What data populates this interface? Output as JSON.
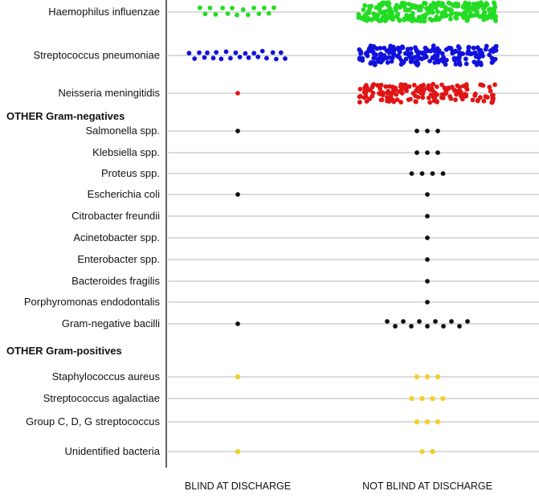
{
  "chart_data": {
    "type": "scatter",
    "columns": [
      "BLIND AT DISCHARGE",
      "NOT BLIND AT DISCHARGE"
    ],
    "grid": true,
    "colors": {
      "green": "#22dd22",
      "blue": "#1111dd",
      "red": "#e01515",
      "black": "#111111",
      "yellow": "#f2cc1a",
      "gridline": "#b8b8b8",
      "axis": "#222222"
    },
    "rows": [
      {
        "kind": "data",
        "label": "Haemophilus influenzae",
        "color": "green",
        "blind": 15,
        "not_blind": 250
      },
      {
        "kind": "data",
        "label": "Streptococcus pneumoniae",
        "color": "blue",
        "blind": 22,
        "not_blind": 200
      },
      {
        "kind": "data",
        "label": "Neisseria meningitidis",
        "color": "red",
        "blind": 1,
        "not_blind": 170
      },
      {
        "kind": "group",
        "label": "OTHER Gram-negatives"
      },
      {
        "kind": "data",
        "label": "Salmonella spp.",
        "color": "black",
        "blind": 1,
        "not_blind": 3
      },
      {
        "kind": "data",
        "label": "Klebsiella spp.",
        "color": "black",
        "blind": 0,
        "not_blind": 3
      },
      {
        "kind": "data",
        "label": "Proteus spp.",
        "color": "black",
        "blind": 0,
        "not_blind": 4
      },
      {
        "kind": "data",
        "label": "Escherichia coli",
        "color": "black",
        "blind": 1,
        "not_blind": 1
      },
      {
        "kind": "data",
        "label": "Citrobacter freundii",
        "color": "black",
        "blind": 0,
        "not_blind": 1
      },
      {
        "kind": "data",
        "label": "Acinetobacter spp.",
        "color": "black",
        "blind": 0,
        "not_blind": 1
      },
      {
        "kind": "data",
        "label": "Enterobacter spp.",
        "color": "black",
        "blind": 0,
        "not_blind": 1
      },
      {
        "kind": "data",
        "label": "Bacteroides fragilis",
        "color": "black",
        "blind": 0,
        "not_blind": 1
      },
      {
        "kind": "data",
        "label": "Porphyromonas endodontalis",
        "color": "black",
        "blind": 0,
        "not_blind": 1
      },
      {
        "kind": "data",
        "label": "Gram-negative bacilli",
        "color": "black",
        "blind": 1,
        "not_blind": 11
      },
      {
        "kind": "group",
        "label": "OTHER Gram-positives"
      },
      {
        "kind": "data",
        "label": "Staphylococcus aureus",
        "color": "yellow",
        "blind": 1,
        "not_blind": 3
      },
      {
        "kind": "data",
        "label": "Streptococcus agalactiae",
        "color": "yellow",
        "blind": 0,
        "not_blind": 4
      },
      {
        "kind": "data",
        "label": "Group C, D, G streptococcus",
        "color": "yellow",
        "blind": 0,
        "not_blind": 3
      },
      {
        "kind": "data",
        "label": "Unidentified bacteria",
        "color": "yellow",
        "blind": 1,
        "not_blind": 2
      }
    ]
  }
}
